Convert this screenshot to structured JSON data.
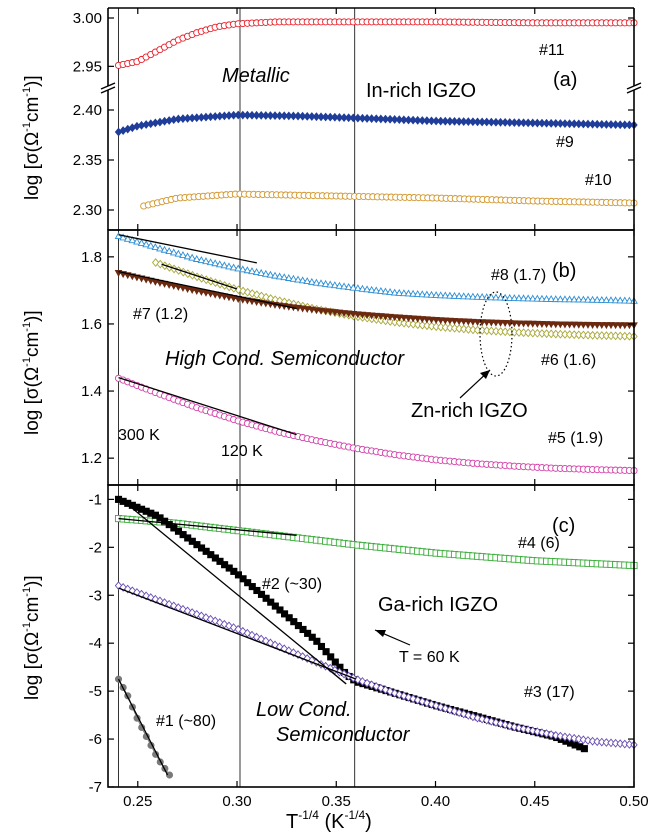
{
  "chart_data": {
    "type": "scatter",
    "x_range": [
      0.235,
      0.5
    ],
    "x_ticks": [
      0.25,
      0.3,
      0.35,
      0.4,
      0.45,
      0.5
    ],
    "x_tick_labels": [
      "0.25",
      "0.30",
      "0.35",
      "0.40",
      "0.45",
      "0.50"
    ],
    "xlabel": "T^-1/4 (K^-1/4)",
    "reference_lines": [
      0.2403,
      0.3015,
      0.3593
    ],
    "panels": [
      {
        "id": "a",
        "panel_label": "(a)",
        "ylabel": "log [σ(Ω⁻¹cm⁻¹)]",
        "y_segments": [
          {
            "ylim": [
              2.94,
              3.0
            ],
            "ticks": [
              2.95,
              3.0
            ],
            "tick_labels": [
              "2.95",
              "3.00"
            ]
          },
          {
            "ylim": [
              2.28,
              2.41
            ],
            "ticks": [
              2.3,
              2.35,
              2.4
            ],
            "tick_labels": [
              "2.30",
              "2.35",
              "2.40"
            ]
          }
        ],
        "annotations": {
          "regime": "Metallic",
          "group": "In-rich IGZO"
        },
        "series": [
          {
            "name": "#11",
            "label": "#11",
            "color": "#e8202a",
            "marker": "circle-open",
            "segment": 0,
            "x0": 0.2403,
            "x1": 0.5,
            "points": [
              [
                0.2403,
                2.951
              ],
              [
                0.25,
                2.955
              ],
              [
                0.26,
                2.966
              ],
              [
                0.27,
                2.977
              ],
              [
                0.28,
                2.985
              ],
              [
                0.29,
                2.991
              ],
              [
                0.3,
                2.994
              ],
              [
                0.32,
                2.996
              ],
              [
                0.35,
                2.996
              ],
              [
                0.4,
                2.996
              ],
              [
                0.45,
                2.995
              ],
              [
                0.5,
                2.995
              ]
            ]
          },
          {
            "name": "#9",
            "label": "#9",
            "color": "#1f3d99",
            "marker": "diamond",
            "segment": 1,
            "x0": 0.2403,
            "x1": 0.5,
            "points": [
              [
                0.2403,
                2.378
              ],
              [
                0.25,
                2.384
              ],
              [
                0.27,
                2.391
              ],
              [
                0.3,
                2.395
              ],
              [
                0.33,
                2.394
              ],
              [
                0.36,
                2.392
              ],
              [
                0.4,
                2.389
              ],
              [
                0.45,
                2.387
              ],
              [
                0.5,
                2.385
              ]
            ]
          },
          {
            "name": "#10",
            "label": "#10",
            "color": "#d2952a",
            "marker": "circle-open",
            "segment": 1,
            "x0": 0.253,
            "x1": 0.5,
            "points": [
              [
                0.253,
                2.304
              ],
              [
                0.27,
                2.312
              ],
              [
                0.3,
                2.316
              ],
              [
                0.35,
                2.314
              ],
              [
                0.4,
                2.312
              ],
              [
                0.45,
                2.309
              ],
              [
                0.5,
                2.307
              ]
            ]
          }
        ]
      },
      {
        "id": "b",
        "panel_label": "(b)",
        "ylabel": "log [σ(Ω⁻¹cm⁻¹)]",
        "ylim": [
          1.12,
          1.88
        ],
        "ticks": [
          1.2,
          1.4,
          1.6,
          1.8
        ],
        "tick_labels": [
          "1.2",
          "1.4",
          "1.6",
          "1.8"
        ],
        "annotations": {
          "regime": "High Cond. Semiconductor",
          "group": "Zn-rich IGZO",
          "t300": "300 K",
          "t120": "120 K"
        },
        "series": [
          {
            "name": "#8 (1.7)",
            "label": "#8 (1.7)",
            "color": "#2e8fd4",
            "marker": "triangle-open",
            "x0": 0.2403,
            "x1": 0.5,
            "points": [
              [
                0.2403,
                1.862
              ],
              [
                0.26,
                1.827
              ],
              [
                0.28,
                1.793
              ],
              [
                0.3,
                1.766
              ],
              [
                0.32,
                1.743
              ],
              [
                0.34,
                1.723
              ],
              [
                0.36,
                1.707
              ],
              [
                0.38,
                1.693
              ],
              [
                0.4,
                1.686
              ],
              [
                0.42,
                1.681
              ],
              [
                0.44,
                1.677
              ],
              [
                0.46,
                1.674
              ],
              [
                0.48,
                1.672
              ],
              [
                0.5,
                1.669
              ]
            ]
          },
          {
            "name": "#7 (1.2)",
            "label": "#7 (1.2)",
            "color": "#a8a83a",
            "marker": "diamond-open",
            "x0": 0.259,
            "x1": 0.5,
            "points": [
              [
                0.259,
                1.783
              ],
              [
                0.28,
                1.74
              ],
              [
                0.3,
                1.703
              ],
              [
                0.32,
                1.671
              ],
              [
                0.34,
                1.644
              ],
              [
                0.36,
                1.622
              ],
              [
                0.38,
                1.605
              ],
              [
                0.4,
                1.592
              ],
              [
                0.42,
                1.582
              ],
              [
                0.44,
                1.575
              ],
              [
                0.46,
                1.57
              ],
              [
                0.48,
                1.566
              ],
              [
                0.5,
                1.563
              ]
            ]
          },
          {
            "name": "#6 (1.6)",
            "label": "#6 (1.6)",
            "color": "#6b2a10",
            "marker": "triangle-down",
            "x0": 0.2403,
            "x1": 0.5,
            "points": [
              [
                0.2403,
                1.752
              ],
              [
                0.26,
                1.724
              ],
              [
                0.28,
                1.698
              ],
              [
                0.3,
                1.675
              ],
              [
                0.32,
                1.656
              ],
              [
                0.34,
                1.641
              ],
              [
                0.36,
                1.629
              ],
              [
                0.38,
                1.62
              ],
              [
                0.4,
                1.612
              ],
              [
                0.42,
                1.606
              ],
              [
                0.44,
                1.602
              ],
              [
                0.46,
                1.599
              ],
              [
                0.48,
                1.597
              ],
              [
                0.5,
                1.596
              ]
            ]
          },
          {
            "name": "#5 (1.9)",
            "label": "#5 (1.9)",
            "color": "#d43fa8",
            "marker": "circle-open",
            "x0": 0.2403,
            "x1": 0.5,
            "points": [
              [
                0.2403,
                1.438
              ],
              [
                0.26,
                1.393
              ],
              [
                0.28,
                1.35
              ],
              [
                0.3,
                1.312
              ],
              [
                0.32,
                1.279
              ],
              [
                0.34,
                1.252
              ],
              [
                0.36,
                1.229
              ],
              [
                0.38,
                1.21
              ],
              [
                0.4,
                1.195
              ],
              [
                0.42,
                1.184
              ],
              [
                0.44,
                1.176
              ],
              [
                0.46,
                1.17
              ],
              [
                0.48,
                1.166
              ],
              [
                0.5,
                1.163
              ]
            ]
          }
        ],
        "fit_lines": [
          [
            [
              0.2403,
              1.866
            ],
            [
              0.31,
              1.782
            ]
          ],
          [
            [
              0.262,
              1.778
            ],
            [
              0.3,
              1.704
            ]
          ],
          [
            [
              0.2403,
              1.756
            ],
            [
              0.33,
              1.646
            ]
          ],
          [
            [
              0.2403,
              1.44
            ],
            [
              0.33,
              1.27
            ]
          ]
        ]
      },
      {
        "id": "c",
        "panel_label": "(c)",
        "ylabel": "log [σ(Ω⁻¹cm⁻¹)]",
        "ylim": [
          -7.0,
          -0.7
        ],
        "ticks": [
          -7,
          -6,
          -5,
          -4,
          -3,
          -2,
          -1
        ],
        "tick_labels": [
          "-7",
          "-6",
          "-5",
          "-4",
          "-3",
          "-2",
          "-1"
        ],
        "annotations": {
          "regime_line1": "Low Cond.",
          "regime_line2": "Semiconductor",
          "group": "Ga-rich IGZO",
          "t60": "T = 60 K"
        },
        "series": [
          {
            "name": "#4 (6)",
            "label": "#4 (6)",
            "color": "#3cae3c",
            "marker": "square-open",
            "x0": 0.2403,
            "x1": 0.5,
            "points": [
              [
                0.2403,
                -1.4
              ],
              [
                0.27,
                -1.5
              ],
              [
                0.3,
                -1.65
              ],
              [
                0.33,
                -1.8
              ],
              [
                0.36,
                -1.95
              ],
              [
                0.4,
                -2.12
              ],
              [
                0.45,
                -2.28
              ],
              [
                0.5,
                -2.38
              ]
            ]
          },
          {
            "name": "#2 (~30)",
            "label": "#2 (~30)",
            "color": "#000000",
            "marker": "square",
            "x0": 0.2403,
            "x1": 0.475,
            "points": [
              [
                0.2403,
                -1.0
              ],
              [
                0.26,
                -1.35
              ],
              [
                0.28,
                -1.95
              ],
              [
                0.3,
                -2.55
              ],
              [
                0.32,
                -3.25
              ],
              [
                0.34,
                -3.95
              ],
              [
                0.355,
                -4.65
              ],
              [
                0.36,
                -4.8
              ],
              [
                0.38,
                -5.05
              ],
              [
                0.4,
                -5.3
              ],
              [
                0.42,
                -5.52
              ],
              [
                0.44,
                -5.75
              ],
              [
                0.46,
                -5.95
              ],
              [
                0.475,
                -6.2
              ]
            ]
          },
          {
            "name": "#3 (17)",
            "label": "#3 (17)",
            "color": "#6a4fb3",
            "marker": "diamond-open",
            "x0": 0.2403,
            "x1": 0.5,
            "points": [
              [
                0.2403,
                -2.8
              ],
              [
                0.26,
                -3.1
              ],
              [
                0.28,
                -3.4
              ],
              [
                0.3,
                -3.7
              ],
              [
                0.32,
                -4.05
              ],
              [
                0.34,
                -4.4
              ],
              [
                0.36,
                -4.75
              ],
              [
                0.38,
                -5.05
              ],
              [
                0.4,
                -5.3
              ],
              [
                0.42,
                -5.55
              ],
              [
                0.44,
                -5.75
              ],
              [
                0.46,
                -5.92
              ],
              [
                0.48,
                -6.05
              ],
              [
                0.5,
                -6.12
              ]
            ]
          },
          {
            "name": "#1 (~80)",
            "label": "#1 (~80)",
            "color": "#7a7a7a",
            "marker": "circle",
            "x0": 0.2403,
            "x1": 0.266,
            "points": [
              [
                0.2403,
                -4.75
              ],
              [
                0.245,
                -5.1
              ],
              [
                0.25,
                -5.6
              ],
              [
                0.255,
                -6.0
              ],
              [
                0.26,
                -6.4
              ],
              [
                0.266,
                -6.75
              ]
            ]
          }
        ],
        "fit_lines": [
          [
            [
              0.2403,
              -1.4
            ],
            [
              0.33,
              -1.75
            ]
          ],
          [
            [
              0.2403,
              -0.95
            ],
            [
              0.355,
              -4.85
            ]
          ],
          [
            [
              0.2403,
              -2.85
            ],
            [
              0.36,
              -4.75
            ]
          ],
          [
            [
              0.2403,
              -4.75
            ],
            [
              0.265,
              -6.75
            ]
          ]
        ]
      }
    ]
  }
}
